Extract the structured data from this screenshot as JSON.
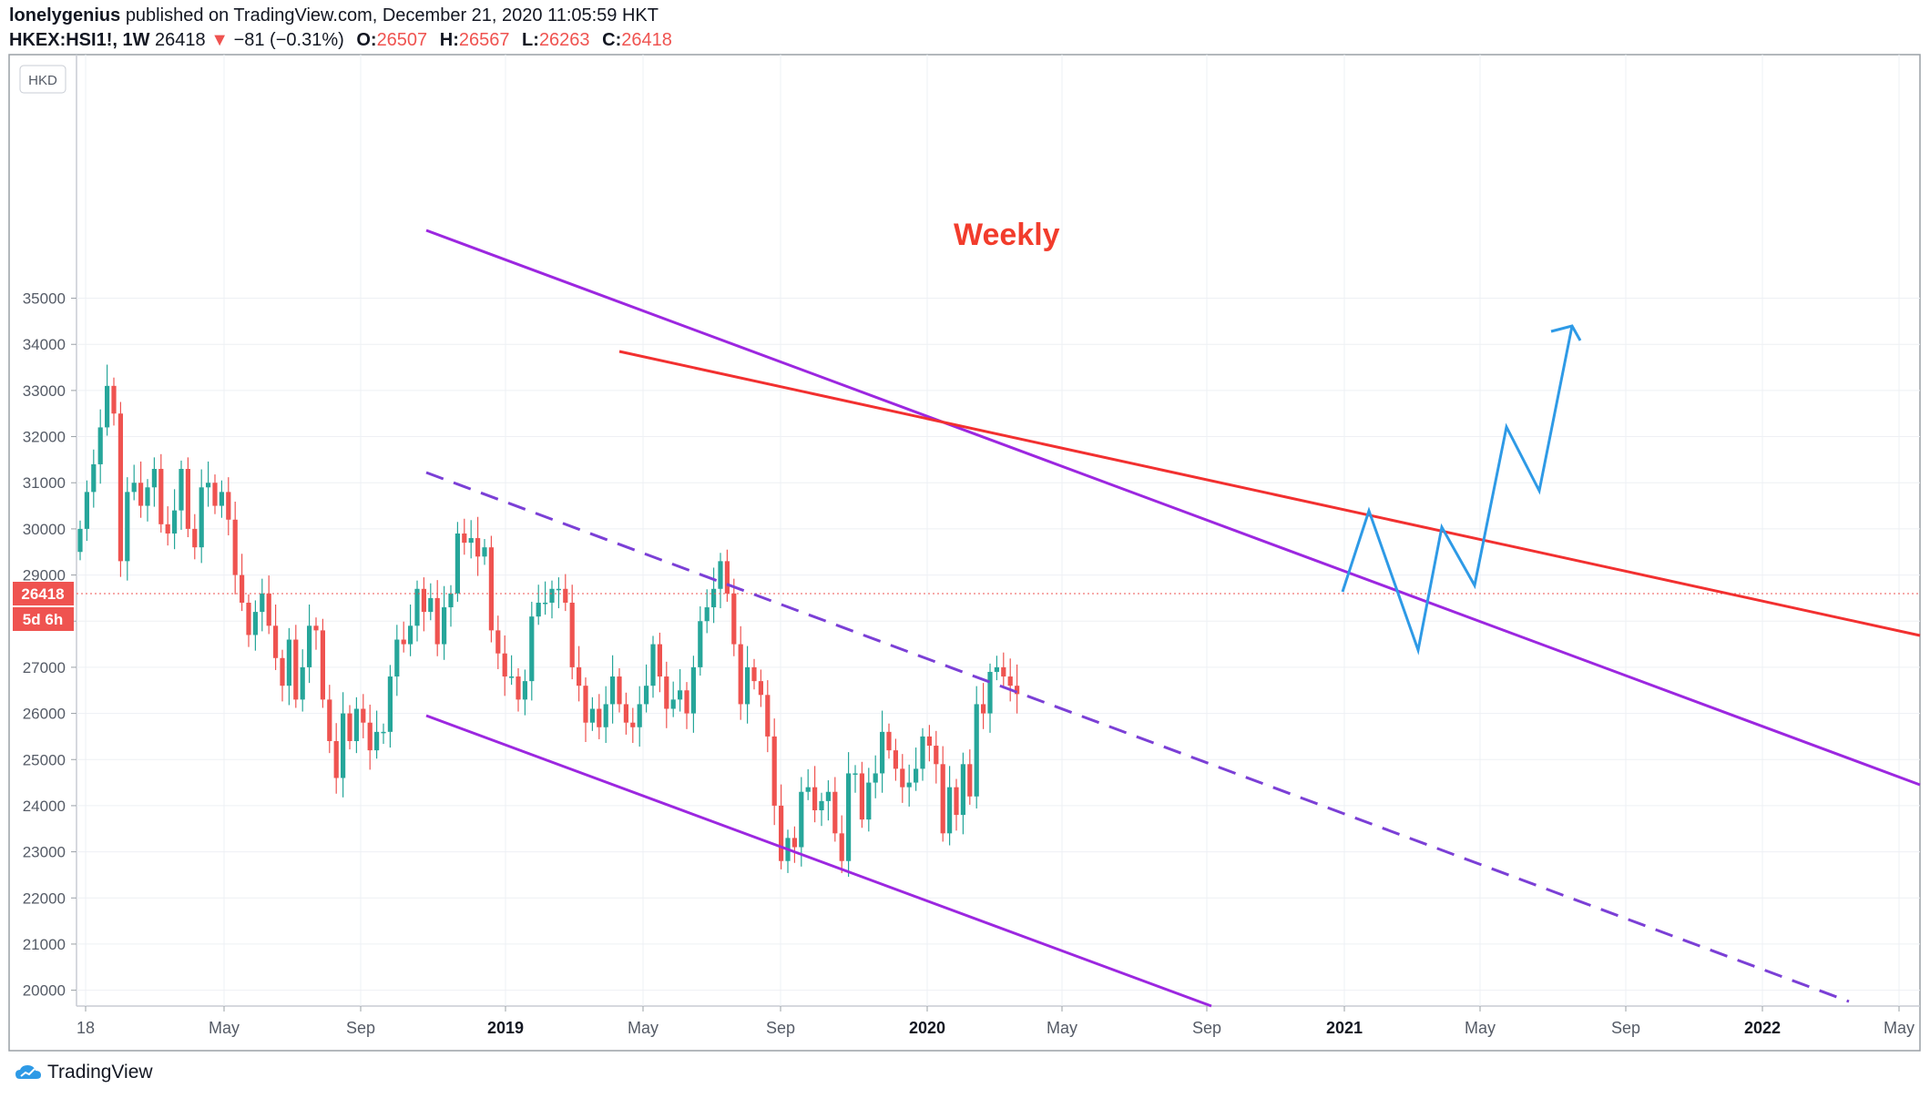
{
  "header": {
    "author": "lonelygenius",
    "published_text": "published on TradingView.com, December 21, 2020 11:05:59 HKT",
    "symbol": "HKEX:HSI1!, 1W",
    "last": "26418",
    "change": "−81 (−0.31%)",
    "o_label": "O:",
    "o_val": "26507",
    "h_label": "H:",
    "h_val": "26567",
    "l_label": "L:",
    "l_val": "26263",
    "c_label": "C:",
    "c_val": "26418"
  },
  "footer": {
    "brand": "TradingView"
  },
  "colors": {
    "up": "#26a69a",
    "down": "#ef5350",
    "channel": "#9c27e0",
    "trend": "#f23030",
    "projection": "#2e9ae6",
    "annotation": "#f23c2c"
  },
  "chart_data": {
    "type": "candlestick",
    "timeframe": "1W",
    "currency": "HKD",
    "annotation": "Weekly",
    "ylim": [
      19700,
      35100
    ],
    "yticks": [
      20000,
      21000,
      22000,
      23000,
      24000,
      25000,
      26000,
      27000,
      28000,
      29000,
      30000,
      31000,
      32000,
      33000,
      34000,
      35000
    ],
    "xticks": [
      "18",
      "May",
      "Sep",
      "2019",
      "May",
      "Sep",
      "2020",
      "May",
      "Sep",
      "2021",
      "May",
      "Sep",
      "2022",
      "May"
    ],
    "price_label": "26418",
    "countdown_label": "5d 6h",
    "closes": [
      30000,
      30800,
      31400,
      32200,
      33100,
      32500,
      29300,
      30800,
      31000,
      30500,
      30900,
      31300,
      30100,
      29900,
      30400,
      31300,
      30000,
      29600,
      30900,
      31000,
      30500,
      30800,
      30200,
      29000,
      28400,
      27700,
      28200,
      28600,
      27900,
      27200,
      26600,
      27600,
      26300,
      27000,
      27900,
      27800,
      26300,
      25400,
      24600,
      26000,
      25400,
      26100,
      25800,
      25200,
      25600,
      25600,
      26800,
      27600,
      27500,
      27900,
      28700,
      28200,
      28500,
      27500,
      28300,
      28600,
      29900,
      29700,
      29800,
      29400,
      29600,
      27800,
      27300,
      26800,
      26800,
      26300,
      26700,
      28100,
      28400,
      28400,
      28700,
      28700,
      28400,
      27000,
      26600,
      25800,
      26100,
      25700,
      26200,
      26800,
      26200,
      25800,
      25700,
      26200,
      26600,
      27500,
      26800,
      26100,
      26300,
      26500,
      26000,
      27000,
      28000,
      28300,
      28700,
      29300,
      28600,
      27500,
      26200,
      27000,
      26700,
      26400,
      25500,
      24000,
      22800,
      23300,
      23100,
      24300,
      24400,
      23900,
      24100,
      24300,
      23400,
      22800,
      24700,
      24700,
      23700,
      24500,
      24700,
      25600,
      25200,
      24800,
      24400,
      24500,
      24800,
      25500,
      25300,
      24900,
      23400,
      24400,
      23800,
      24900,
      24200,
      26200,
      26000,
      26900,
      27000,
      26800,
      26600,
      26418
    ]
  }
}
